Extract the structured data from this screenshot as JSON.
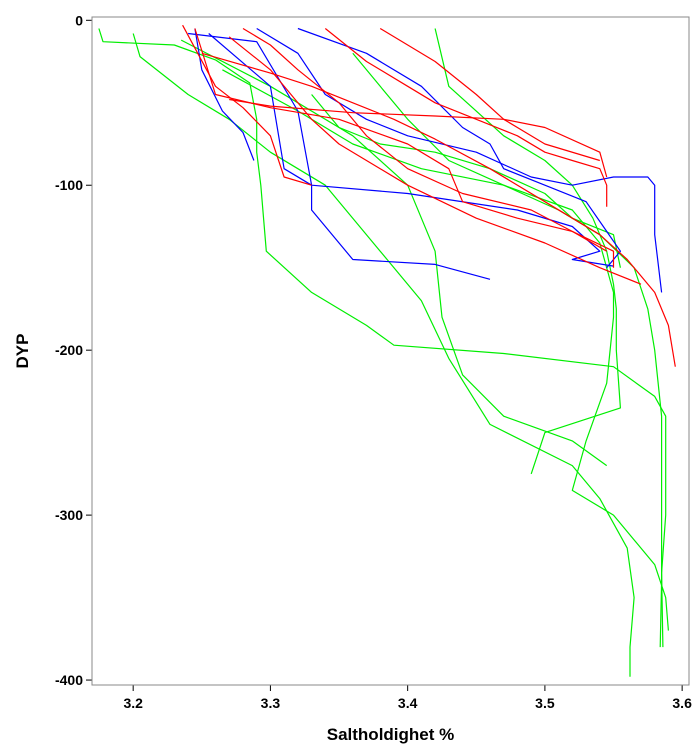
{
  "chart_data": {
    "type": "line",
    "xlabel": "Saltholdighet %",
    "ylabel": "DYP",
    "xlim": [
      3.17,
      3.605
    ],
    "ylim": [
      -403,
      2
    ],
    "x_ticks": [
      3.2,
      3.3,
      3.4,
      3.5,
      3.6
    ],
    "x_tick_labels": [
      "3.2",
      "3.3",
      "3.4",
      "3.5",
      "3.6"
    ],
    "y_ticks": [
      0,
      -100,
      -200,
      -300,
      -400
    ],
    "y_tick_labels": [
      "0",
      "-100",
      "-200",
      "-300",
      "-400"
    ],
    "grid": false,
    "legend": "none",
    "colors": {
      "red": "#ff0000",
      "green": "#00ee00",
      "blue": "#0000ff",
      "frame": "#888888"
    },
    "series": [
      {
        "color": "#00ee00",
        "points": [
          [
            3.175,
            -5
          ],
          [
            3.178,
            -13
          ],
          [
            3.23,
            -15
          ],
          [
            3.26,
            -24
          ],
          [
            3.285,
            -38
          ],
          [
            3.29,
            -60
          ],
          [
            3.29,
            -80
          ],
          [
            3.293,
            -100
          ],
          [
            3.297,
            -140
          ],
          [
            3.33,
            -165
          ],
          [
            3.37,
            -185
          ],
          [
            3.39,
            -197
          ],
          [
            3.47,
            -202
          ],
          [
            3.55,
            -210
          ],
          [
            3.58,
            -228
          ],
          [
            3.588,
            -240
          ],
          [
            3.588,
            -300
          ],
          [
            3.585,
            -335
          ],
          [
            3.586,
            -380
          ]
        ]
      },
      {
        "color": "#00ee00",
        "points": [
          [
            3.2,
            -8
          ],
          [
            3.205,
            -22
          ],
          [
            3.24,
            -45
          ],
          [
            3.27,
            -60
          ],
          [
            3.3,
            -80
          ],
          [
            3.34,
            -100
          ],
          [
            3.38,
            -140
          ],
          [
            3.41,
            -170
          ],
          [
            3.43,
            -205
          ],
          [
            3.46,
            -245
          ],
          [
            3.52,
            -270
          ],
          [
            3.54,
            -290
          ],
          [
            3.56,
            -320
          ],
          [
            3.565,
            -350
          ],
          [
            3.562,
            -380
          ],
          [
            3.562,
            -398
          ]
        ]
      },
      {
        "color": "#00ee00",
        "points": [
          [
            3.235,
            -12
          ],
          [
            3.3,
            -40
          ],
          [
            3.36,
            -70
          ],
          [
            3.4,
            -100
          ],
          [
            3.42,
            -140
          ],
          [
            3.425,
            -180
          ],
          [
            3.44,
            -215
          ],
          [
            3.47,
            -240
          ],
          [
            3.52,
            -255
          ],
          [
            3.545,
            -270
          ]
        ]
      },
      {
        "color": "#00ee00",
        "points": [
          [
            3.265,
            -30
          ],
          [
            3.32,
            -55
          ],
          [
            3.36,
            -75
          ],
          [
            3.41,
            -90
          ],
          [
            3.47,
            -100
          ],
          [
            3.52,
            -115
          ],
          [
            3.54,
            -135
          ],
          [
            3.55,
            -165
          ],
          [
            3.55,
            -180
          ],
          [
            3.545,
            -220
          ],
          [
            3.53,
            -255
          ],
          [
            3.52,
            -285
          ],
          [
            3.55,
            -300
          ],
          [
            3.58,
            -330
          ],
          [
            3.588,
            -350
          ],
          [
            3.59,
            -370
          ]
        ]
      },
      {
        "color": "#00ee00",
        "points": [
          [
            3.36,
            -20
          ],
          [
            3.38,
            -40
          ],
          [
            3.4,
            -60
          ],
          [
            3.43,
            -85
          ],
          [
            3.47,
            -100
          ],
          [
            3.51,
            -115
          ],
          [
            3.54,
            -130
          ],
          [
            3.565,
            -150
          ],
          [
            3.575,
            -175
          ],
          [
            3.58,
            -200
          ],
          [
            3.585,
            -240
          ],
          [
            3.585,
            -300
          ],
          [
            3.585,
            -340
          ],
          [
            3.584,
            -380
          ]
        ]
      },
      {
        "color": "#00ee00",
        "points": [
          [
            3.42,
            -5
          ],
          [
            3.43,
            -40
          ],
          [
            3.47,
            -70
          ],
          [
            3.5,
            -85
          ],
          [
            3.52,
            -100
          ],
          [
            3.535,
            -120
          ],
          [
            3.545,
            -140
          ],
          [
            3.55,
            -160
          ],
          [
            3.552,
            -175
          ],
          [
            3.552,
            -200
          ],
          [
            3.555,
            -235
          ],
          [
            3.5,
            -250
          ],
          [
            3.49,
            -275
          ]
        ]
      },
      {
        "color": "#00ee00",
        "points": [
          [
            3.33,
            -45
          ],
          [
            3.35,
            -65
          ],
          [
            3.38,
            -75
          ],
          [
            3.42,
            -80
          ],
          [
            3.46,
            -90
          ],
          [
            3.5,
            -105
          ],
          [
            3.52,
            -120
          ],
          [
            3.55,
            -130
          ],
          [
            3.555,
            -150
          ]
        ]
      },
      {
        "color": "#0000ff",
        "points": [
          [
            3.245,
            -5
          ],
          [
            3.25,
            -30
          ],
          [
            3.265,
            -55
          ],
          [
            3.28,
            -68
          ],
          [
            3.288,
            -85
          ]
        ]
      },
      {
        "color": "#0000ff",
        "points": [
          [
            3.255,
            -8
          ],
          [
            3.3,
            -40
          ],
          [
            3.31,
            -90
          ],
          [
            3.33,
            -100
          ],
          [
            3.33,
            -115
          ],
          [
            3.36,
            -145
          ],
          [
            3.42,
            -148
          ],
          [
            3.46,
            -157
          ]
        ]
      },
      {
        "color": "#0000ff",
        "points": [
          [
            3.24,
            -8
          ],
          [
            3.29,
            -13
          ],
          [
            3.32,
            -55
          ],
          [
            3.33,
            -100
          ],
          [
            3.4,
            -105
          ],
          [
            3.48,
            -115
          ],
          [
            3.52,
            -125
          ],
          [
            3.54,
            -140
          ],
          [
            3.52,
            -145
          ],
          [
            3.55,
            -149
          ]
        ]
      },
      {
        "color": "#0000ff",
        "points": [
          [
            3.29,
            -5
          ],
          [
            3.32,
            -20
          ],
          [
            3.34,
            -45
          ],
          [
            3.37,
            -60
          ],
          [
            3.4,
            -70
          ],
          [
            3.45,
            -80
          ],
          [
            3.49,
            -95
          ],
          [
            3.52,
            -100
          ],
          [
            3.55,
            -95
          ],
          [
            3.575,
            -95
          ],
          [
            3.58,
            -100
          ],
          [
            3.58,
            -130
          ],
          [
            3.585,
            -165
          ]
        ]
      },
      {
        "color": "#0000ff",
        "points": [
          [
            3.32,
            -5
          ],
          [
            3.37,
            -20
          ],
          [
            3.41,
            -40
          ],
          [
            3.44,
            -65
          ],
          [
            3.46,
            -75
          ],
          [
            3.47,
            -90
          ],
          [
            3.5,
            -100
          ],
          [
            3.53,
            -110
          ],
          [
            3.545,
            -128
          ],
          [
            3.555,
            -140
          ],
          [
            3.545,
            -150
          ]
        ]
      },
      {
        "color": "#ff0000",
        "points": [
          [
            3.236,
            -3
          ],
          [
            3.26,
            -40
          ],
          [
            3.28,
            -53
          ],
          [
            3.3,
            -70
          ],
          [
            3.31,
            -95
          ],
          [
            3.33,
            -100
          ]
        ]
      },
      {
        "color": "#ff0000",
        "points": [
          [
            3.245,
            -5
          ],
          [
            3.26,
            -45
          ],
          [
            3.3,
            -53
          ],
          [
            3.35,
            -60
          ],
          [
            3.4,
            -75
          ],
          [
            3.43,
            -90
          ],
          [
            3.44,
            -110
          ],
          [
            3.48,
            -120
          ],
          [
            3.52,
            -128
          ],
          [
            3.545,
            -140
          ]
        ]
      },
      {
        "color": "#ff0000",
        "points": [
          [
            3.28,
            -5
          ],
          [
            3.3,
            -15
          ],
          [
            3.32,
            -30
          ],
          [
            3.35,
            -50
          ],
          [
            3.37,
            -70
          ],
          [
            3.4,
            -90
          ],
          [
            3.44,
            -105
          ],
          [
            3.49,
            -115
          ],
          [
            3.52,
            -128
          ],
          [
            3.55,
            -140
          ],
          [
            3.55,
            -150
          ]
        ]
      },
      {
        "color": "#ff0000",
        "points": [
          [
            3.27,
            -10
          ],
          [
            3.3,
            -30
          ],
          [
            3.33,
            -60
          ],
          [
            3.35,
            -75
          ],
          [
            3.4,
            -100
          ],
          [
            3.45,
            -120
          ],
          [
            3.5,
            -135
          ],
          [
            3.54,
            -150
          ],
          [
            3.57,
            -160
          ]
        ]
      },
      {
        "color": "#ff0000",
        "points": [
          [
            3.25,
            -20
          ],
          [
            3.3,
            -32
          ],
          [
            3.33,
            -40
          ],
          [
            3.36,
            -50
          ],
          [
            3.39,
            -60
          ],
          [
            3.42,
            -72
          ],
          [
            3.46,
            -90
          ],
          [
            3.5,
            -110
          ],
          [
            3.54,
            -130
          ],
          [
            3.56,
            -145
          ],
          [
            3.58,
            -165
          ],
          [
            3.59,
            -185
          ],
          [
            3.595,
            -210
          ]
        ]
      },
      {
        "color": "#ff0000",
        "points": [
          [
            3.34,
            -5
          ],
          [
            3.37,
            -25
          ],
          [
            3.4,
            -40
          ],
          [
            3.42,
            -50
          ],
          [
            3.45,
            -60
          ],
          [
            3.48,
            -70
          ],
          [
            3.5,
            -80
          ],
          [
            3.52,
            -85
          ],
          [
            3.54,
            -90
          ],
          [
            3.545,
            -100
          ],
          [
            3.545,
            -113
          ]
        ]
      },
      {
        "color": "#ff0000",
        "points": [
          [
            3.27,
            -48
          ],
          [
            3.3,
            -52
          ],
          [
            3.36,
            -56
          ],
          [
            3.42,
            -58
          ],
          [
            3.47,
            -60
          ],
          [
            3.5,
            -65
          ],
          [
            3.54,
            -80
          ],
          [
            3.545,
            -95
          ]
        ]
      },
      {
        "color": "#ff0000",
        "points": [
          [
            3.38,
            -5
          ],
          [
            3.4,
            -15
          ],
          [
            3.42,
            -25
          ],
          [
            3.45,
            -45
          ],
          [
            3.47,
            -60
          ],
          [
            3.5,
            -75
          ],
          [
            3.54,
            -85
          ]
        ]
      }
    ]
  }
}
